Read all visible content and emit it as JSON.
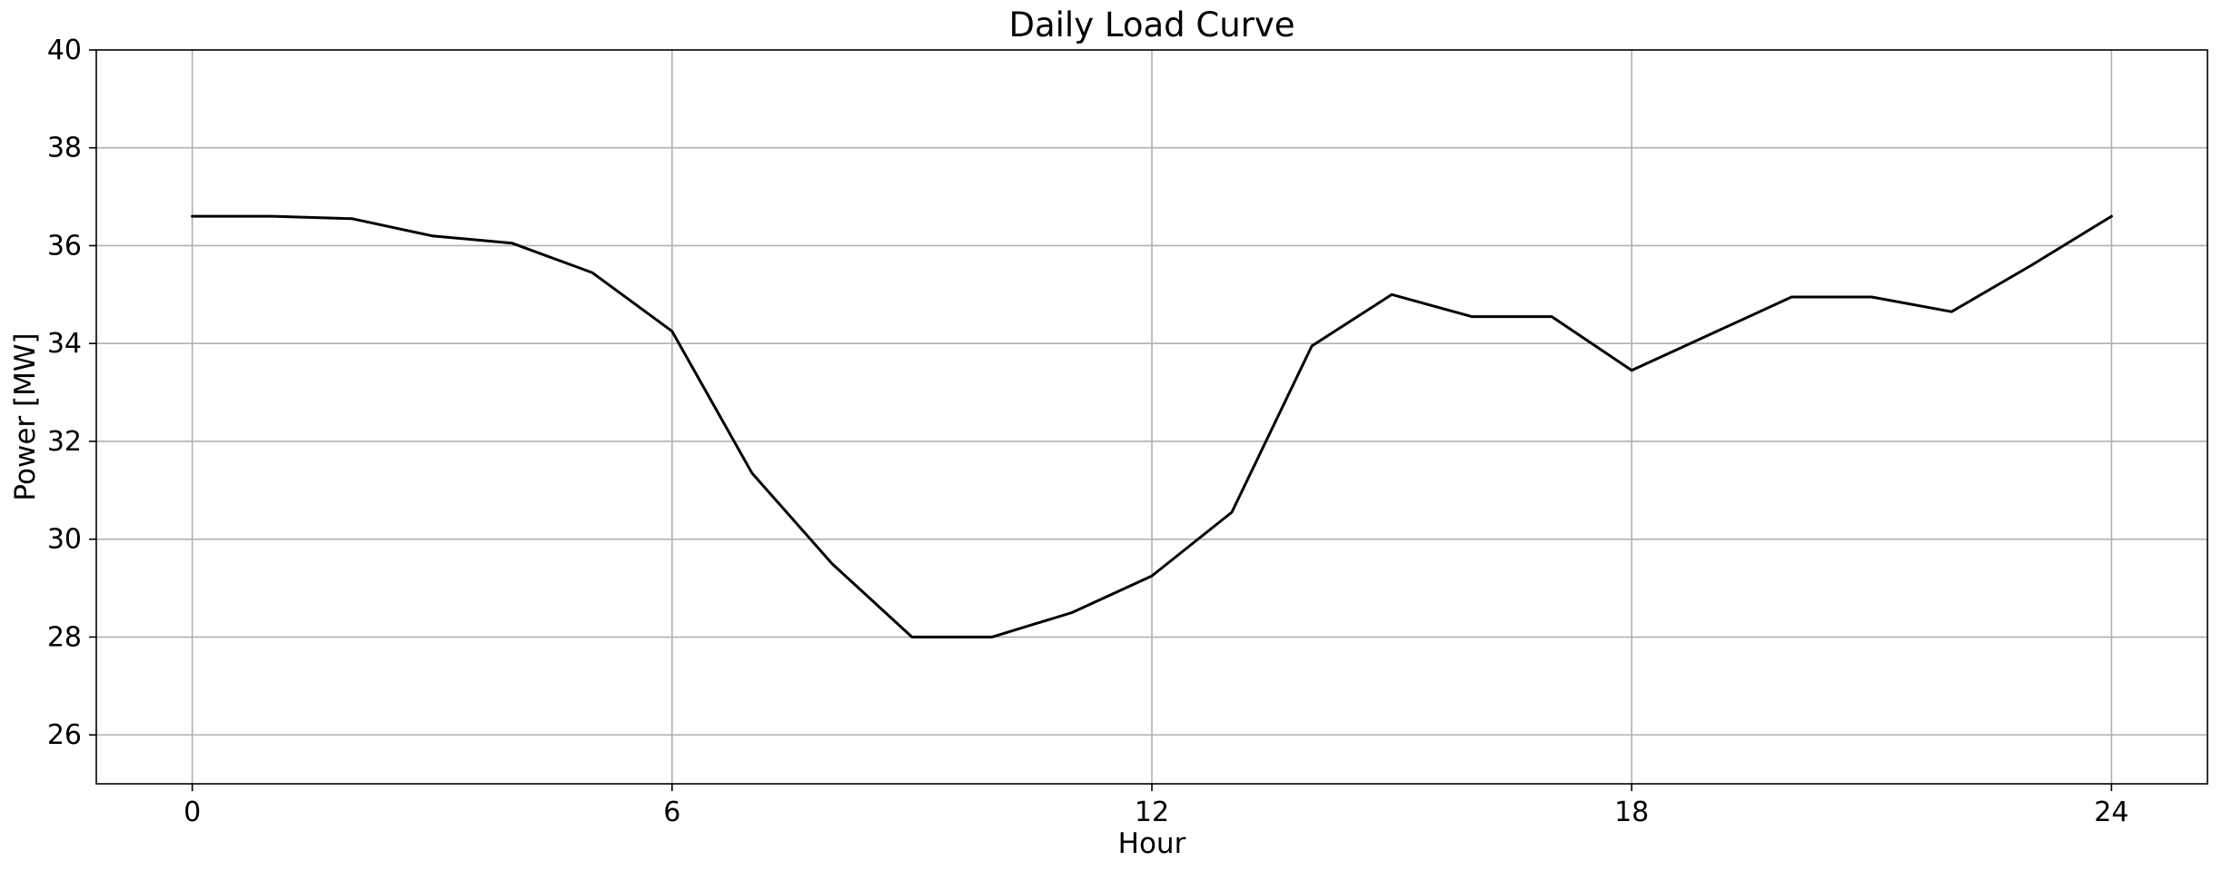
{
  "chart_data": {
    "type": "line",
    "title": "Daily Load Curve",
    "xlabel": "Hour",
    "ylabel": "Power [MW]",
    "xlim": [
      -1.2,
      25.2
    ],
    "ylim": [
      25,
      40
    ],
    "xticks": [
      0,
      6,
      12,
      18,
      24
    ],
    "yticks": [
      26,
      28,
      30,
      32,
      34,
      36,
      38,
      40
    ],
    "grid": true,
    "series": [
      {
        "color": "#000000",
        "x": [
          0,
          1,
          2,
          3,
          4,
          5,
          6,
          7,
          8,
          9,
          10,
          11,
          12,
          13,
          14,
          15,
          16,
          17,
          18,
          19,
          20,
          21,
          22,
          23,
          24
        ],
        "y": [
          36.6,
          36.6,
          36.55,
          36.2,
          36.05,
          35.45,
          34.25,
          31.35,
          29.5,
          28.0,
          28.0,
          28.5,
          29.25,
          30.55,
          33.95,
          35.0,
          34.55,
          34.55,
          33.45,
          34.2,
          34.95,
          34.95,
          34.65,
          35.6,
          36.6
        ]
      }
    ]
  }
}
